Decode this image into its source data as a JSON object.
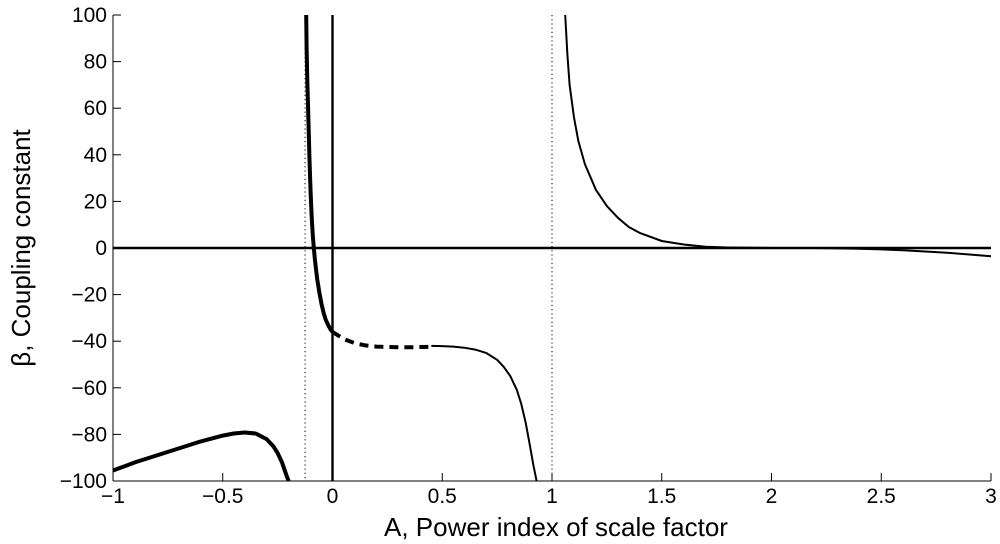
{
  "chart_data": {
    "type": "line",
    "xlabel": "A, Power index of scale factor",
    "ylabel": "β, Coupling constant",
    "xlim": [
      -1,
      3
    ],
    "ylim": [
      -100,
      100
    ],
    "x_ticks": [
      "−1",
      "−0.5",
      "0",
      "0.5",
      "1",
      "1.5",
      "2",
      "2.5",
      "3"
    ],
    "y_ticks": [
      "100",
      "80",
      "60",
      "40",
      "20",
      "0",
      "−20",
      "−40",
      "−60",
      "−80",
      "−100"
    ],
    "grid": false,
    "legend": "none",
    "reference_lines": [
      {
        "orientation": "horizontal",
        "value": 0,
        "style": "solid"
      },
      {
        "orientation": "vertical",
        "value": 0,
        "style": "solid"
      },
      {
        "orientation": "vertical",
        "value": -0.125,
        "style": "dotted"
      },
      {
        "orientation": "vertical",
        "value": 1,
        "style": "dotted"
      }
    ],
    "series": [
      {
        "style": "thick-solid",
        "x": [
          -1.0,
          -0.9,
          -0.8,
          -0.7,
          -0.6,
          -0.5,
          -0.45,
          -0.4,
          -0.35,
          -0.3,
          -0.27,
          -0.25,
          -0.23,
          -0.21,
          -0.2
        ],
        "y": [
          -95.5,
          -92,
          -89,
          -86,
          -83,
          -80.5,
          -79.6,
          -79.2,
          -79.6,
          -82,
          -85,
          -88,
          -92,
          -97.5,
          -100
        ]
      },
      {
        "style": "thick-solid",
        "x": [
          -0.12,
          -0.118,
          -0.115,
          -0.11,
          -0.105,
          -0.1,
          -0.095,
          -0.09,
          -0.085,
          -0.08,
          -0.075,
          -0.07,
          -0.065,
          -0.06,
          -0.05,
          -0.04,
          -0.03,
          -0.02,
          -0.01,
          0.0
        ],
        "y": [
          100,
          86,
          72,
          55,
          38,
          24,
          14,
          6,
          0,
          -5,
          -9,
          -13,
          -16,
          -19,
          -24,
          -28,
          -31,
          -33,
          -34.8,
          -36
        ]
      },
      {
        "style": "thick-dashed",
        "x": [
          0.0,
          0.05,
          0.1,
          0.15,
          0.2,
          0.25,
          0.3,
          0.35,
          0.4,
          0.45
        ],
        "y": [
          -36,
          -39,
          -40.8,
          -41.8,
          -42.3,
          -42.5,
          -42.6,
          -42.6,
          -42.5,
          -42.4
        ]
      },
      {
        "style": "thin-solid",
        "x": [
          0.45,
          0.5,
          0.55,
          0.6,
          0.65,
          0.7,
          0.75,
          0.78,
          0.81,
          0.84,
          0.86,
          0.88,
          0.9,
          0.915,
          0.93
        ],
        "y": [
          -42,
          -42.1,
          -42.3,
          -42.8,
          -43.6,
          -45,
          -48,
          -51,
          -55,
          -61,
          -67,
          -75,
          -85,
          -93,
          -100
        ]
      },
      {
        "style": "thin-solid",
        "x": [
          1.06,
          1.07,
          1.08,
          1.1,
          1.12,
          1.15,
          1.2,
          1.25,
          1.3,
          1.35,
          1.4,
          1.5,
          1.6,
          1.7,
          1.8,
          2.0,
          2.2,
          2.4,
          2.5,
          2.6,
          2.8,
          3.0
        ],
        "y": [
          100,
          83,
          70,
          56,
          46,
          36,
          25,
          18,
          13,
          9,
          6.5,
          3,
          1.5,
          0.5,
          0.2,
          0,
          0,
          -0.3,
          -0.6,
          -1,
          -2,
          -3.5
        ]
      }
    ]
  }
}
